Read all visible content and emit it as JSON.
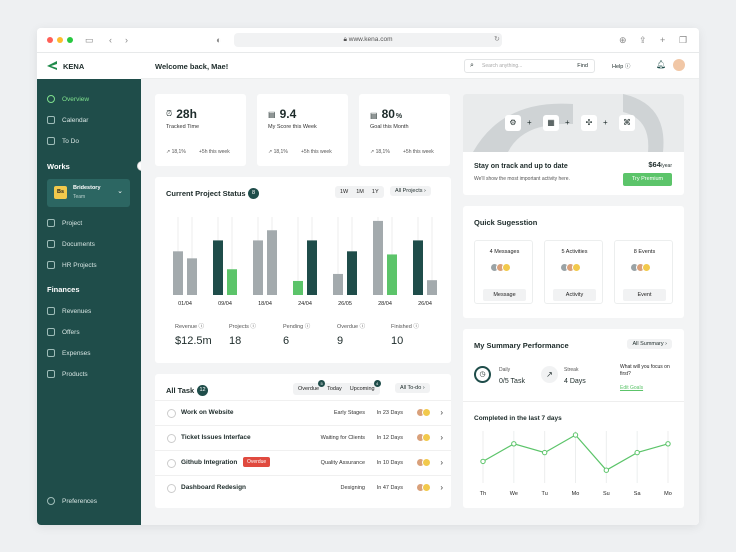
{
  "browser": {
    "url": "www.kena.com"
  },
  "app": {
    "logo": "KENA",
    "welcome": "Welcome back, Mae!",
    "search_placeholder": "Search anything...",
    "find_label": "Find",
    "help_label": "Help"
  },
  "sidebar": {
    "top_items": [
      {
        "label": "Overview",
        "icon": "overview-icon",
        "active": true
      },
      {
        "label": "Calendar",
        "icon": "calendar-icon"
      },
      {
        "label": "To Do",
        "icon": "todo-icon"
      }
    ],
    "works_title": "Works",
    "team": {
      "name": "Bridestory",
      "sub": "Team",
      "initials": "Bs"
    },
    "work_items": [
      {
        "label": "Project",
        "icon": "project-icon"
      },
      {
        "label": "Documents",
        "icon": "documents-icon"
      },
      {
        "label": "HR Projects",
        "icon": "hr-projects-icon"
      }
    ],
    "finances_title": "Finances",
    "finance_items": [
      {
        "label": "Revenues",
        "icon": "revenues-icon"
      },
      {
        "label": "Offers",
        "icon": "offers-icon"
      },
      {
        "label": "Expenses",
        "icon": "expenses-icon"
      },
      {
        "label": "Products",
        "icon": "products-icon"
      }
    ],
    "preferences": "Preferences"
  },
  "stats": [
    {
      "value": "28h",
      "label": "Tracked Time",
      "pct": "18,1%",
      "delta": "+5h this week"
    },
    {
      "value": "9.4",
      "label": "My Score this Week",
      "pct": "18,1%",
      "delta": "+5h this week"
    },
    {
      "value": "80",
      "unit": "%",
      "label": "Goal this Month",
      "pct": "18,1%",
      "delta": "+5h this week"
    }
  ],
  "promo": {
    "title": "Stay on track and up to date",
    "sub": "We'll show the most important activity here.",
    "price": "$64",
    "per": "/year",
    "button": "Try Premium"
  },
  "project_status": {
    "title": "Current Project Status",
    "count": "8",
    "ranges": [
      "1W",
      "1M",
      "1Y"
    ],
    "filter": "All Projects",
    "metrics": [
      {
        "label": "Revenue",
        "value": "$12.5m"
      },
      {
        "label": "Projects",
        "value": "18"
      },
      {
        "label": "Pending",
        "value": "6"
      },
      {
        "label": "Overdue",
        "value": "9"
      },
      {
        "label": "Finished",
        "value": "10"
      }
    ]
  },
  "chart_data": {
    "type": "bar",
    "categories": [
      "01/04",
      "09/04",
      "18/04",
      "24/04",
      "26/05",
      "28/04",
      "26/04"
    ],
    "series": [
      {
        "values": [
          0.56,
          0.7,
          0.65,
          0.0,
          0.46,
          0.93,
          0.7
        ],
        "color": "#a3aaad"
      },
      {
        "values": [
          0.0,
          0.0,
          0.0,
          0.0,
          0.0,
          0.0,
          0.0
        ],
        "color": "#1f4d4a"
      },
      {
        "values": [
          0.0,
          0.0,
          0.0,
          0.0,
          0.0,
          0.0,
          0.0
        ],
        "color": "#5cc46a"
      }
    ],
    "groups": [
      [
        {
          "v": 0.56,
          "c": "#a3aaad"
        },
        {
          "v": 0.47,
          "c": "#a3aaad"
        }
      ],
      [
        {
          "v": 0.7,
          "c": "#1f4d4a"
        },
        {
          "v": 0.33,
          "c": "#5cc46a"
        }
      ],
      [
        {
          "v": 0.7,
          "c": "#a3aaad"
        },
        {
          "v": 0.83,
          "c": "#a3aaad"
        }
      ],
      [
        {
          "v": 0.18,
          "c": "#5cc46a"
        },
        {
          "v": 0.7,
          "c": "#1f4d4a"
        }
      ],
      [
        {
          "v": 0.27,
          "c": "#a3aaad"
        },
        {
          "v": 0.56,
          "c": "#1f4d4a"
        }
      ],
      [
        {
          "v": 0.95,
          "c": "#a3aaad"
        },
        {
          "v": 0.52,
          "c": "#5cc46a"
        }
      ],
      [
        {
          "v": 0.7,
          "c": "#1f4d4a"
        },
        {
          "v": 0.19,
          "c": "#a3aaad"
        }
      ]
    ]
  },
  "tasks": {
    "title": "All Task",
    "count": "12",
    "filters": [
      {
        "label": "Overdue",
        "badge": "5"
      },
      {
        "label": "Today"
      },
      {
        "label": "Upcoming",
        "badge": "4"
      }
    ],
    "all_todo": "All To-do",
    "rows": [
      {
        "name": "Work on Website",
        "stage": "Early Stages",
        "due": "In 23 Days"
      },
      {
        "name": "Ticket Issues Interface",
        "stage": "Waiting for Clients",
        "due": "In 12 Days"
      },
      {
        "name": "Github Integration",
        "tag": "Overdue",
        "stage": "Quality Assurance",
        "due": "In 10 Days"
      },
      {
        "name": "Dashboard Redesign",
        "stage": "Designing",
        "due": "In 47 Days"
      }
    ]
  },
  "suggestion": {
    "title": "Quick Sugesstion",
    "items": [
      {
        "count": "4 Messages",
        "action": "Message"
      },
      {
        "count": "5 Activities",
        "action": "Activity"
      },
      {
        "count": "8 Events",
        "action": "Event"
      }
    ]
  },
  "summary": {
    "title": "My Summary Performance",
    "filter": "All Summary",
    "daily_label": "Daily",
    "daily_value": "0/5 Task",
    "streak_label": "Streak",
    "streak_value": "4 Days",
    "focus_q": "What will you focus on first?",
    "edit_goals": "Edit Goals",
    "completed_title": "Completed in the last 7 days",
    "days": [
      "Th",
      "We",
      "Tu",
      "Mo",
      "Su",
      "Sa",
      "Mo"
    ],
    "values": [
      2,
      4,
      3,
      5,
      1,
      3,
      4
    ]
  },
  "colors": {
    "sidebar": "#1f4d4a",
    "accent_green": "#5cc46a",
    "dark_teal": "#1f4d4a",
    "grey_bar": "#a3aaad",
    "overdue_red": "#e04a3f"
  }
}
